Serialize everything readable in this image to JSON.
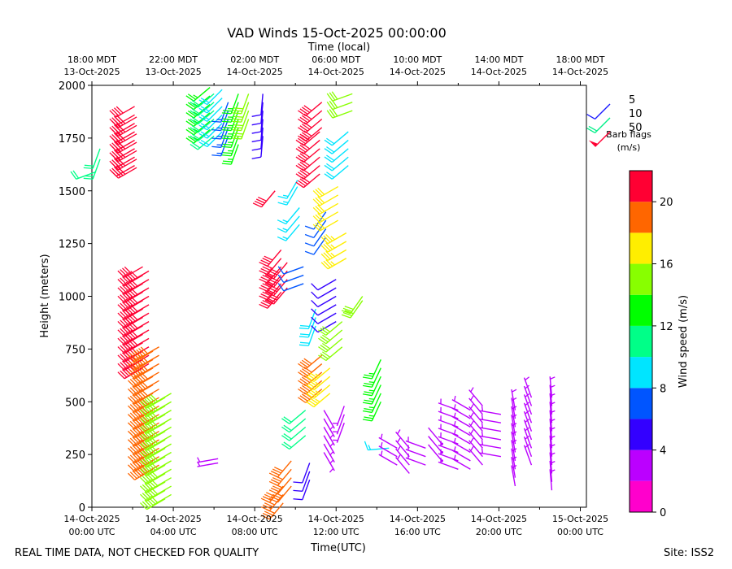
{
  "chart_data": {
    "type": "wind-barb",
    "title": "VAD Winds 15-Oct-2025 00:00:00",
    "top_axis_title": "Time (local)",
    "xlabel": "Time(UTC)",
    "ylabel": "Height (meters)",
    "ylim": [
      0,
      2000
    ],
    "y_ticks": [
      "0",
      "250",
      "500",
      "750",
      "1000",
      "1250",
      "1500",
      "1750",
      "2000"
    ],
    "xlim_hours": [
      0,
      24.3
    ],
    "x_ticks": [
      {
        "hour": 0,
        "line1": "14-Oct-2025",
        "line2": "00:00 UTC"
      },
      {
        "hour": 4,
        "line1": "14-Oct-2025",
        "line2": "04:00 UTC"
      },
      {
        "hour": 8,
        "line1": "14-Oct-2025",
        "line2": "08:00 UTC"
      },
      {
        "hour": 12,
        "line1": "14-Oct-2025",
        "line2": "12:00 UTC"
      },
      {
        "hour": 16,
        "line1": "14-Oct-2025",
        "line2": "16:00 UTC"
      },
      {
        "hour": 20,
        "line1": "14-Oct-2025",
        "line2": "20:00 UTC"
      },
      {
        "hour": 24,
        "line1": "15-Oct-2025",
        "line2": "00:00 UTC"
      }
    ],
    "top_ticks": [
      {
        "hour": 0,
        "line1": "18:00 MDT",
        "line2": "13-Oct-2025"
      },
      {
        "hour": 4,
        "line1": "22:00 MDT",
        "line2": "13-Oct-2025"
      },
      {
        "hour": 8,
        "line1": "02:00 MDT",
        "line2": "14-Oct-2025"
      },
      {
        "hour": 12,
        "line1": "06:00 MDT",
        "line2": "14-Oct-2025"
      },
      {
        "hour": 16,
        "line1": "10:00 MDT",
        "line2": "14-Oct-2025"
      },
      {
        "hour": 20,
        "line1": "14:00 MDT",
        "line2": "14-Oct-2025"
      },
      {
        "hour": 24,
        "line1": "18:00 MDT",
        "line2": "14-Oct-2025"
      }
    ],
    "barb_legend": {
      "items": [
        {
          "label": "5",
          "speed": 5,
          "color": "#1a1aff"
        },
        {
          "label": "10",
          "speed": 10,
          "color": "#00f088"
        },
        {
          "label": "50",
          "speed": 50,
          "color": "#ff0033"
        }
      ],
      "title_line1": "Barb flags",
      "title_line2": "(m/s)"
    },
    "colorbar": {
      "label": "Wind speed (m/s)",
      "range": [
        0,
        22
      ],
      "ticks": [
        "0",
        "4",
        "8",
        "12",
        "16",
        "20"
      ],
      "bands": [
        {
          "from": 0,
          "to": 2,
          "color": "#ff00cc"
        },
        {
          "from": 2,
          "to": 4,
          "color": "#bb00ff"
        },
        {
          "from": 4,
          "to": 6,
          "color": "#3300ff"
        },
        {
          "from": 6,
          "to": 8,
          "color": "#0055ff"
        },
        {
          "from": 8,
          "to": 10,
          "color": "#00e5ff"
        },
        {
          "from": 10,
          "to": 12,
          "color": "#00ff88"
        },
        {
          "from": 12,
          "to": 14,
          "color": "#00ff00"
        },
        {
          "from": 14,
          "to": 16,
          "color": "#88ff00"
        },
        {
          "from": 16,
          "to": 18,
          "color": "#ffee00"
        },
        {
          "from": 18,
          "to": 20,
          "color": "#ff6600"
        },
        {
          "from": 20,
          "to": 22,
          "color": "#ff0033"
        }
      ]
    },
    "barb_groups": [
      {
        "t": 0.2,
        "h": [
          1590
        ],
        "speed": 11,
        "dir": 250
      },
      {
        "t": 0.4,
        "h": [
          1650,
          1700
        ],
        "speed": 11,
        "dir": 200
      },
      {
        "t": 2.1,
        "h": [
          1620,
          1660,
          1700,
          1740,
          1780,
          1820,
          1860,
          1900
        ],
        "speed": 21,
        "dir": 240
      },
      {
        "t": 2.2,
        "h": [
          1610,
          1650,
          1690,
          1730,
          1770,
          1810,
          1850
        ],
        "speed": 21,
        "dir": 240
      },
      {
        "t": 2.5,
        "h": [
          660,
          700,
          740,
          780,
          820,
          860,
          900,
          940,
          980,
          1020,
          1060,
          1100,
          1140
        ],
        "speed": 21,
        "dir": 240
      },
      {
        "t": 2.8,
        "h": [
          680,
          720,
          760,
          800,
          840,
          880,
          920,
          960,
          1000,
          1040,
          1080,
          1120
        ],
        "speed": 21,
        "dir": 240
      },
      {
        "t": 3.0,
        "h": [
          180,
          220,
          260,
          300,
          340,
          380,
          420,
          460,
          500,
          540,
          580,
          620,
          660,
          700,
          740
        ],
        "speed": 19,
        "dir": 240
      },
      {
        "t": 3.3,
        "h": [
          200,
          240,
          280,
          320,
          360,
          400,
          440,
          480,
          520,
          560,
          600,
          640,
          680,
          720,
          760
        ],
        "speed": 19,
        "dir": 240
      },
      {
        "t": 3.6,
        "h": [
          40,
          80,
          120,
          160,
          200,
          240,
          280,
          320,
          360,
          400,
          440,
          480,
          520
        ],
        "speed": 15,
        "dir": 240
      },
      {
        "t": 3.9,
        "h": [
          60,
          100,
          140,
          180,
          220,
          260,
          300,
          340,
          380,
          420,
          460,
          500,
          540
        ],
        "speed": 15,
        "dir": 240
      },
      {
        "t": 5.8,
        "h": [
          1790,
          1830,
          1870,
          1910,
          1950,
          1990
        ],
        "speed": 13,
        "dir": 230
      },
      {
        "t": 6.0,
        "h": [
          1760,
          1800,
          1840,
          1880,
          1920,
          1960
        ],
        "speed": 11,
        "dir": 230
      },
      {
        "t": 6.4,
        "h": [
          1780,
          1820,
          1860,
          1900,
          1940,
          1980
        ],
        "speed": 9,
        "dir": 225
      },
      {
        "t": 6.7,
        "h": [
          1760,
          1800,
          1840,
          1880,
          1920
        ],
        "speed": 7,
        "dir": 200
      },
      {
        "t": 7.2,
        "h": [
          1720,
          1760,
          1800,
          1840,
          1880,
          1920,
          1960
        ],
        "speed": 12,
        "dir": 200
      },
      {
        "t": 7.7,
        "h": [
          1840,
          1880,
          1920,
          1960
        ],
        "speed": 15,
        "dir": 200
      },
      {
        "t": 8.4,
        "h": [
          1760,
          1800,
          1840,
          1880,
          1920,
          1960
        ],
        "speed": 5,
        "dir": 185
      },
      {
        "t": 6.2,
        "h": [
          210,
          230
        ],
        "speed": 3,
        "dir": 260
      },
      {
        "t": 9.0,
        "h": [
          1500
        ],
        "speed": 21,
        "dir": 220
      },
      {
        "t": 9.3,
        "h": [
          1020,
          1060,
          1100,
          1140,
          1180,
          1220
        ],
        "speed": 21,
        "dir": 220
      },
      {
        "t": 9.6,
        "h": [
          1040,
          1080,
          1120,
          1160
        ],
        "speed": 21,
        "dir": 220
      },
      {
        "t": 9.4,
        "h": [
          20,
          60,
          100
        ],
        "speed": 19,
        "dir": 220
      },
      {
        "t": 9.8,
        "h": [
          100,
          140,
          180,
          220
        ],
        "speed": 19,
        "dir": 220
      },
      {
        "t": 10.1,
        "h": [
          1520,
          1550
        ],
        "speed": 8,
        "dir": 210
      },
      {
        "t": 10.2,
        "h": [
          1340,
          1380,
          1420
        ],
        "speed": 8,
        "dir": 220
      },
      {
        "t": 10.4,
        "h": [
          1060,
          1100,
          1140
        ],
        "speed": 6,
        "dir": 250
      },
      {
        "t": 10.5,
        "h": [
          340,
          380,
          420,
          460
        ],
        "speed": 11,
        "dir": 230
      },
      {
        "t": 10.7,
        "h": [
          130,
          170,
          210
        ],
        "speed": 5,
        "dir": 200
      },
      {
        "t": 11.0,
        "h": [
          860,
          900,
          940
        ],
        "speed": 9,
        "dir": 200
      },
      {
        "t": 11.2,
        "h": [
          1580,
          1620,
          1660,
          1700,
          1740,
          1780
        ],
        "speed": 21,
        "dir": 230
      },
      {
        "t": 11.3,
        "h": [
          1800,
          1840,
          1880,
          1920
        ],
        "speed": 21,
        "dir": 230
      },
      {
        "t": 11.3,
        "h": [
          560,
          600,
          640,
          680,
          720
        ],
        "speed": 19,
        "dir": 230
      },
      {
        "t": 11.4,
        "h": [
          260,
          300,
          340,
          380,
          420,
          460
        ],
        "speed": 3,
        "dir": 150
      },
      {
        "t": 11.5,
        "h": [
          1280,
          1320,
          1360,
          1400
        ],
        "speed": 6,
        "dir": 215
      },
      {
        "t": 11.7,
        "h": [
          540,
          580,
          620,
          660
        ],
        "speed": 17,
        "dir": 230
      },
      {
        "t": 12.0,
        "h": [
          880,
          920,
          960,
          1000,
          1040,
          1080
        ],
        "speed": 5,
        "dir": 240
      },
      {
        "t": 12.1,
        "h": [
          1360,
          1400,
          1440,
          1480,
          1520
        ],
        "speed": 16,
        "dir": 240
      },
      {
        "t": 12.3,
        "h": [
          760,
          800,
          840,
          880
        ],
        "speed": 14,
        "dir": 230
      },
      {
        "t": 12.4,
        "h": [
          400,
          440,
          480
        ],
        "speed": 3,
        "dir": 200
      },
      {
        "t": 12.5,
        "h": [
          1180,
          1220,
          1260,
          1300
        ],
        "speed": 17,
        "dir": 240
      },
      {
        "t": 12.6,
        "h": [
          1620,
          1660,
          1700,
          1740,
          1780
        ],
        "speed": 9,
        "dir": 230
      },
      {
        "t": 12.8,
        "h": [
          1880,
          1920,
          1960
        ],
        "speed": 14,
        "dir": 250
      },
      {
        "t": 13.3,
        "h": [
          980,
          1000
        ],
        "speed": 15,
        "dir": 215
      },
      {
        "t": 14.2,
        "h": [
          500,
          540,
          580,
          620,
          660,
          700
        ],
        "speed": 13,
        "dir": 205
      },
      {
        "t": 14.6,
        "h": [
          280
        ],
        "speed": 8,
        "dir": 265
      },
      {
        "t": 15.0,
        "h": [
          200,
          240,
          280
        ],
        "speed": 3,
        "dir": 300
      },
      {
        "t": 15.6,
        "h": [
          160,
          200,
          240,
          280
        ],
        "speed": 3,
        "dir": 320
      },
      {
        "t": 16.4,
        "h": [
          200,
          240,
          280
        ],
        "speed": 3,
        "dir": 290
      },
      {
        "t": 17.2,
        "h": [
          220,
          260,
          300
        ],
        "speed": 2,
        "dir": 320
      },
      {
        "t": 18.0,
        "h": [
          180,
          220,
          260,
          300,
          340,
          380,
          420,
          460
        ],
        "speed": 3,
        "dir": 290
      },
      {
        "t": 18.6,
        "h": [
          180,
          220,
          260,
          300,
          340,
          380,
          420,
          460
        ],
        "speed": 3,
        "dir": 300
      },
      {
        "t": 19.2,
        "h": [
          200,
          240,
          280,
          320,
          360,
          400,
          440,
          480
        ],
        "speed": 3,
        "dir": 320
      },
      {
        "t": 20.1,
        "h": [
          240,
          280,
          320,
          360,
          400,
          440
        ],
        "speed": 3,
        "dir": 280
      },
      {
        "t": 20.8,
        "h": [
          100,
          140,
          180,
          220,
          260,
          300,
          340,
          380,
          420,
          460
        ],
        "speed": 3,
        "dir": 350
      },
      {
        "t": 21.6,
        "h": [
          200,
          240,
          280,
          320,
          360,
          400,
          440,
          480,
          520
        ],
        "speed": 3,
        "dir": 340
      },
      {
        "t": 22.6,
        "h": [
          80,
          120,
          160,
          200,
          240,
          280,
          320,
          360,
          400,
          440,
          480,
          520
        ],
        "speed": 3,
        "dir": 355
      }
    ]
  },
  "footer": {
    "disclaimer": "REAL TIME DATA, NOT CHECKED FOR QUALITY",
    "site": "Site: ISS2"
  }
}
